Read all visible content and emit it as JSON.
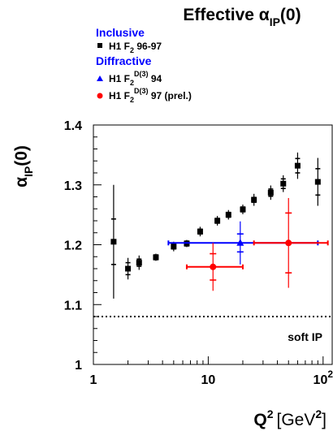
{
  "chart_data": {
    "type": "scatter",
    "title_main": "Effective α",
    "title_sub": "IP",
    "title_end": "(0)",
    "ylabel_main": "α",
    "ylabel_sub": "IP",
    "ylabel_end": "(0)",
    "xlabel_q": "Q",
    "xlabel_sup": "2",
    "xlabel_unit": "[GeV",
    "xlabel_unit_sup": "2",
    "xlabel_unit_end": "]",
    "x_scale": "log",
    "xlim": [
      1,
      120
    ],
    "ylim": [
      1.0,
      1.4
    ],
    "x_ticks": [
      {
        "value": 1,
        "label": "1",
        "sup": ""
      },
      {
        "value": 10,
        "label": "10",
        "sup": ""
      },
      {
        "value": 100,
        "label": "10",
        "sup": "2"
      }
    ],
    "y_ticks": [
      {
        "value": 1.0,
        "label": "1"
      },
      {
        "value": 1.1,
        "label": "1.1"
      },
      {
        "value": 1.2,
        "label": "1.2"
      },
      {
        "value": 1.3,
        "label": "1.3"
      },
      {
        "value": 1.4,
        "label": "1.4"
      }
    ],
    "legend_position": "top-left",
    "legend_groups": [
      {
        "heading": "Inclusive",
        "heading_color": "#0000ff",
        "entries": [
          {
            "series": 0,
            "text": "H1 F",
            "sub": "2",
            "sup": "",
            "rest": " 96-97"
          }
        ]
      },
      {
        "heading": "Diffractive",
        "heading_color": "#0000ff",
        "entries": [
          {
            "series": 1,
            "text": "H1 F",
            "sub": "2",
            "sup": "D(3)",
            "rest": " 94"
          },
          {
            "series": 2,
            "text": "H1 F",
            "sub": "2",
            "sup": "D(3)",
            "rest": " 97 (prel.)"
          }
        ]
      }
    ],
    "reference_line": {
      "y": 1.08,
      "label": "soft IP",
      "style": "dotted"
    },
    "series": [
      {
        "marker": "square",
        "color": "#000000",
        "points": [
          {
            "x": 1.5,
            "y": 1.205,
            "ystat": 0.038,
            "ysys": 0.095,
            "xlo": null,
            "xhi": null
          },
          {
            "x": 2.0,
            "y": 1.16,
            "ystat": 0.01,
            "ysys": 0.018,
            "xlo": null,
            "xhi": null
          },
          {
            "x": 2.5,
            "y": 1.17,
            "ystat": 0.006,
            "ysys": 0.012,
            "xlo": null,
            "xhi": null
          },
          {
            "x": 3.5,
            "y": 1.179,
            "ystat": 0.004,
            "ysys": 0.006,
            "xlo": null,
            "xhi": null
          },
          {
            "x": 5.0,
            "y": 1.197,
            "ystat": 0.004,
            "ysys": 0.008,
            "xlo": null,
            "xhi": null
          },
          {
            "x": 6.5,
            "y": 1.202,
            "ystat": 0.004,
            "ysys": 0.006,
            "xlo": null,
            "xhi": null
          },
          {
            "x": 8.5,
            "y": 1.222,
            "ystat": 0.004,
            "ysys": 0.008,
            "xlo": null,
            "xhi": null
          },
          {
            "x": 12.0,
            "y": 1.24,
            "ystat": 0.004,
            "ysys": 0.008,
            "xlo": null,
            "xhi": null
          },
          {
            "x": 15.0,
            "y": 1.25,
            "ystat": 0.004,
            "ysys": 0.008,
            "xlo": null,
            "xhi": null
          },
          {
            "x": 20.0,
            "y": 1.259,
            "ystat": 0.004,
            "ysys": 0.008,
            "xlo": null,
            "xhi": null
          },
          {
            "x": 25.0,
            "y": 1.275,
            "ystat": 0.004,
            "ysys": 0.01,
            "xlo": null,
            "xhi": null
          },
          {
            "x": 35.0,
            "y": 1.287,
            "ystat": 0.006,
            "ysys": 0.012,
            "xlo": null,
            "xhi": null
          },
          {
            "x": 45.0,
            "y": 1.302,
            "ystat": 0.008,
            "ysys": 0.014,
            "xlo": null,
            "xhi": null
          },
          {
            "x": 60.0,
            "y": 1.332,
            "ystat": 0.012,
            "ysys": 0.022,
            "xlo": null,
            "xhi": null
          },
          {
            "x": 90.0,
            "y": 1.305,
            "ystat": 0.022,
            "ysys": 0.04,
            "xlo": null,
            "xhi": null
          }
        ]
      },
      {
        "marker": "triangle",
        "color": "#0000ff",
        "points": [
          {
            "x": 19.0,
            "y": 1.203,
            "ystat": 0.015,
            "ysys": 0.036,
            "xlo": 4.5,
            "xhi": 90.0
          }
        ]
      },
      {
        "marker": "circle",
        "color": "#ff0000",
        "points": [
          {
            "x": 11.0,
            "y": 1.163,
            "ystat": 0.022,
            "ysys": 0.04,
            "xlo": 6.5,
            "xhi": 20.0
          },
          {
            "x": 50.0,
            "y": 1.203,
            "ystat": 0.05,
            "ysys": 0.075,
            "xlo": 25.0,
            "xhi": 110.0
          }
        ]
      }
    ]
  }
}
